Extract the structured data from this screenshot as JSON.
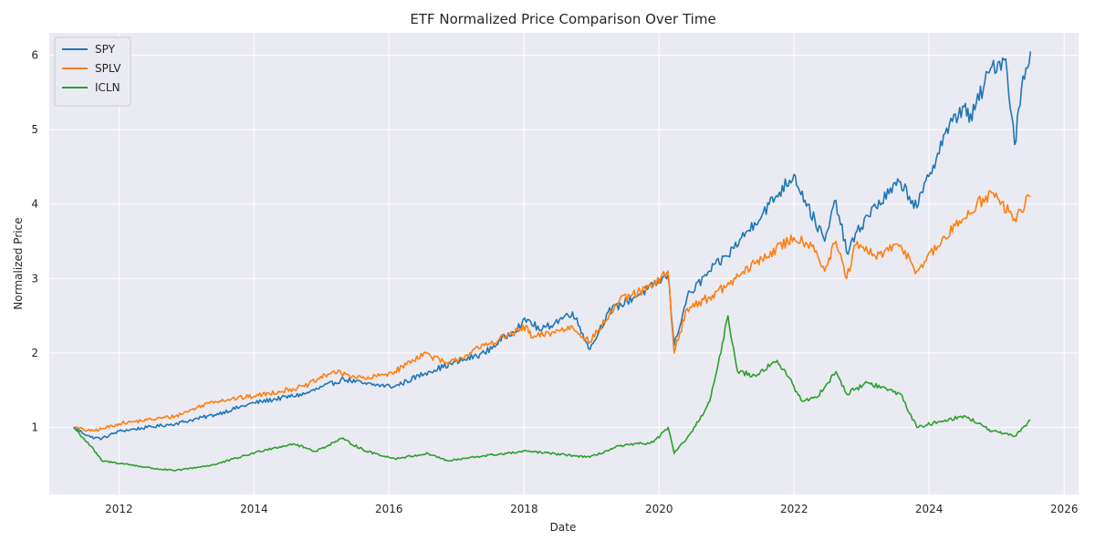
{
  "chart_data": {
    "type": "line",
    "title": "ETF Normalized Price Comparison Over Time",
    "xlabel": "Date",
    "ylabel": "Normalized Price",
    "xlim": [
      "2010-12-20",
      "2026-03-20"
    ],
    "ylim": [
      0.1,
      6.3
    ],
    "x_ticks": [
      "2012",
      "2014",
      "2016",
      "2018",
      "2020",
      "2022",
      "2024",
      "2026"
    ],
    "y_ticks": [
      1,
      2,
      3,
      4,
      5,
      6
    ],
    "grid": true,
    "legend": "top-left",
    "background_color": "#eaeaf2",
    "series": [
      {
        "name": "SPY",
        "color": "#1f77b4",
        "points": [
          [
            "2011-05-01",
            1.0
          ],
          [
            "2011-08-01",
            0.87
          ],
          [
            "2011-10-01",
            0.85
          ],
          [
            "2012-01-01",
            0.95
          ],
          [
            "2012-06-01",
            1.0
          ],
          [
            "2012-11-01",
            1.05
          ],
          [
            "2013-06-01",
            1.17
          ],
          [
            "2014-01-01",
            1.33
          ],
          [
            "2014-10-01",
            1.45
          ],
          [
            "2015-05-01",
            1.65
          ],
          [
            "2015-09-01",
            1.58
          ],
          [
            "2016-02-01",
            1.55
          ],
          [
            "2016-08-01",
            1.75
          ],
          [
            "2017-06-01",
            2.0
          ],
          [
            "2018-01-20",
            2.45
          ],
          [
            "2018-04-01",
            2.3
          ],
          [
            "2018-09-20",
            2.55
          ],
          [
            "2018-12-24",
            2.05
          ],
          [
            "2019-04-01",
            2.55
          ],
          [
            "2019-12-01",
            2.9
          ],
          [
            "2020-02-19",
            3.05
          ],
          [
            "2020-03-23",
            2.1
          ],
          [
            "2020-06-01",
            2.75
          ],
          [
            "2020-10-01",
            3.1
          ],
          [
            "2021-01-01",
            3.3
          ],
          [
            "2021-06-01",
            3.75
          ],
          [
            "2021-12-31",
            4.4
          ],
          [
            "2022-03-01",
            4.05
          ],
          [
            "2022-06-16",
            3.5
          ],
          [
            "2022-08-15",
            4.05
          ],
          [
            "2022-10-12",
            3.35
          ],
          [
            "2023-02-01",
            3.85
          ],
          [
            "2023-07-31",
            4.3
          ],
          [
            "2023-10-27",
            3.95
          ],
          [
            "2024-03-28",
            4.95
          ],
          [
            "2024-07-16",
            5.35
          ],
          [
            "2024-08-05",
            5.1
          ],
          [
            "2024-12-06",
            5.85
          ],
          [
            "2025-02-19",
            5.95
          ],
          [
            "2025-04-08",
            4.8
          ],
          [
            "2025-05-15",
            5.55
          ],
          [
            "2025-07-03",
            6.05
          ]
        ]
      },
      {
        "name": "SPLV",
        "color": "#ff7f0e",
        "points": [
          [
            "2011-05-01",
            1.0
          ],
          [
            "2011-08-01",
            0.95
          ],
          [
            "2011-10-01",
            0.98
          ],
          [
            "2012-01-01",
            1.05
          ],
          [
            "2012-06-01",
            1.1
          ],
          [
            "2012-11-01",
            1.15
          ],
          [
            "2013-05-20",
            1.35
          ],
          [
            "2014-01-01",
            1.42
          ],
          [
            "2014-10-01",
            1.55
          ],
          [
            "2015-03-01",
            1.75
          ],
          [
            "2015-09-01",
            1.65
          ],
          [
            "2016-02-01",
            1.75
          ],
          [
            "2016-07-08",
            2.0
          ],
          [
            "2016-11-15",
            1.85
          ],
          [
            "2017-06-01",
            2.1
          ],
          [
            "2018-01-20",
            2.35
          ],
          [
            "2018-02-09",
            2.2
          ],
          [
            "2018-09-20",
            2.35
          ],
          [
            "2018-12-24",
            2.15
          ],
          [
            "2019-06-01",
            2.7
          ],
          [
            "2019-12-01",
            2.9
          ],
          [
            "2020-02-19",
            3.1
          ],
          [
            "2020-03-23",
            2.0
          ],
          [
            "2020-06-01",
            2.6
          ],
          [
            "2020-10-01",
            2.75
          ],
          [
            "2021-01-01",
            2.9
          ],
          [
            "2021-06-01",
            3.2
          ],
          [
            "2021-12-31",
            3.55
          ],
          [
            "2022-04-15",
            3.45
          ],
          [
            "2022-06-16",
            3.1
          ],
          [
            "2022-08-15",
            3.5
          ],
          [
            "2022-10-12",
            3.0
          ],
          [
            "2022-12-01",
            3.45
          ],
          [
            "2023-03-15",
            3.3
          ],
          [
            "2023-07-31",
            3.45
          ],
          [
            "2023-10-27",
            3.1
          ],
          [
            "2024-03-28",
            3.55
          ],
          [
            "2024-09-15",
            4.0
          ],
          [
            "2024-12-06",
            4.15
          ],
          [
            "2025-04-08",
            3.8
          ],
          [
            "2025-07-03",
            4.1
          ]
        ]
      },
      {
        "name": "ICLN",
        "color": "#2ca02c",
        "points": [
          [
            "2011-05-01",
            1.0
          ],
          [
            "2011-08-01",
            0.75
          ],
          [
            "2011-10-01",
            0.55
          ],
          [
            "2012-03-01",
            0.5
          ],
          [
            "2012-07-01",
            0.45
          ],
          [
            "2012-11-01",
            0.42
          ],
          [
            "2013-06-01",
            0.5
          ],
          [
            "2014-03-01",
            0.7
          ],
          [
            "2014-08-01",
            0.78
          ],
          [
            "2014-12-01",
            0.68
          ],
          [
            "2015-04-20",
            0.85
          ],
          [
            "2015-09-01",
            0.68
          ],
          [
            "2016-02-01",
            0.58
          ],
          [
            "2016-08-01",
            0.65
          ],
          [
            "2016-11-15",
            0.55
          ],
          [
            "2017-06-01",
            0.62
          ],
          [
            "2018-01-20",
            0.68
          ],
          [
            "2018-10-01",
            0.62
          ],
          [
            "2018-12-24",
            0.6
          ],
          [
            "2019-06-01",
            0.75
          ],
          [
            "2019-12-01",
            0.8
          ],
          [
            "2020-02-19",
            1.0
          ],
          [
            "2020-03-23",
            0.65
          ],
          [
            "2020-07-01",
            0.95
          ],
          [
            "2020-10-01",
            1.35
          ],
          [
            "2020-12-01",
            2.0
          ],
          [
            "2021-01-08",
            2.5
          ],
          [
            "2021-03-01",
            1.75
          ],
          [
            "2021-06-01",
            1.7
          ],
          [
            "2021-10-01",
            1.9
          ],
          [
            "2021-12-31",
            1.55
          ],
          [
            "2022-02-15",
            1.35
          ],
          [
            "2022-05-01",
            1.4
          ],
          [
            "2022-08-15",
            1.75
          ],
          [
            "2022-10-12",
            1.45
          ],
          [
            "2023-02-01",
            1.6
          ],
          [
            "2023-07-31",
            1.45
          ],
          [
            "2023-10-27",
            1.0
          ],
          [
            "2024-03-28",
            1.1
          ],
          [
            "2024-07-16",
            1.15
          ],
          [
            "2024-12-06",
            0.95
          ],
          [
            "2025-04-08",
            0.88
          ],
          [
            "2025-07-03",
            1.1
          ]
        ]
      }
    ]
  }
}
